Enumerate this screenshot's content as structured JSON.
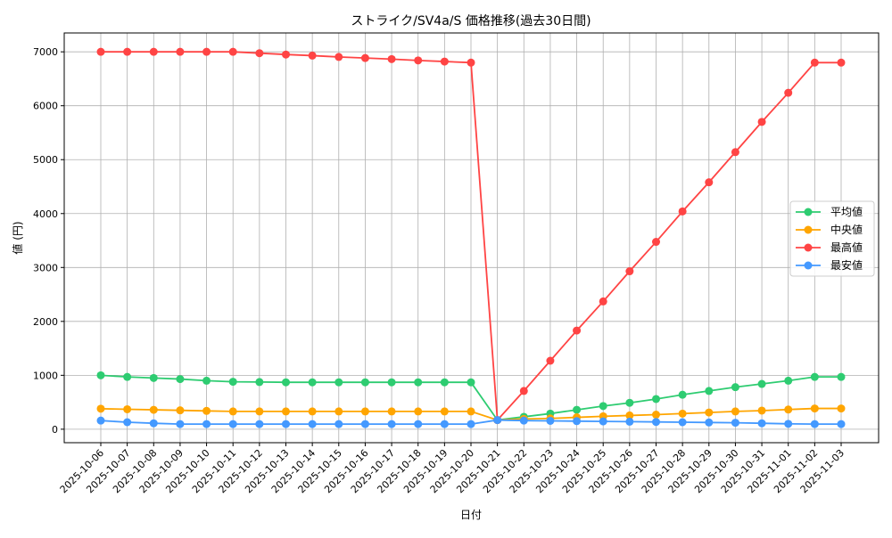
{
  "chart_data": {
    "type": "line",
    "title": "ストライク/SV4a/S 価格推移(過去30日間)",
    "xlabel": "日付",
    "ylabel": "値 (円)",
    "ylim": [
      -250,
      7350
    ],
    "yticks": [
      0,
      1000,
      2000,
      3000,
      4000,
      5000,
      6000,
      7000
    ],
    "grid": true,
    "legend_placement": "center-right",
    "x": [
      "2025-10-06",
      "2025-10-07",
      "2025-10-08",
      "2025-10-09",
      "2025-10-10",
      "2025-10-11",
      "2025-10-12",
      "2025-10-13",
      "2025-10-14",
      "2025-10-15",
      "2025-10-16",
      "2025-10-17",
      "2025-10-18",
      "2025-10-19",
      "2025-10-20",
      "2025-10-21",
      "2025-10-22",
      "2025-10-23",
      "2025-10-24",
      "2025-10-25",
      "2025-10-26",
      "2025-10-27",
      "2025-10-28",
      "2025-10-29",
      "2025-10-30",
      "2025-10-31",
      "2025-11-01",
      "2025-11-02",
      "2025-11-03"
    ],
    "series": [
      {
        "name": "平均値",
        "color": "#2ecc71",
        "values": [
          1000,
          970,
          950,
          930,
          900,
          880,
          875,
          870,
          870,
          870,
          870,
          870,
          870,
          870,
          870,
          170,
          230,
          290,
          360,
          430,
          490,
          560,
          640,
          710,
          780,
          840,
          900,
          970,
          970
        ]
      },
      {
        "name": "中央値",
        "color": "#ffa500",
        "values": [
          380,
          370,
          360,
          350,
          340,
          330,
          330,
          330,
          330,
          330,
          330,
          330,
          330,
          330,
          330,
          170,
          190,
          200,
          220,
          240,
          255,
          270,
          290,
          310,
          330,
          345,
          365,
          385,
          385
        ]
      },
      {
        "name": "最高値",
        "color": "#ff4444",
        "values": [
          7000,
          7000,
          7000,
          7000,
          7000,
          7000,
          6975,
          6950,
          6930,
          6905,
          6885,
          6865,
          6840,
          6820,
          6800,
          170,
          710,
          1270,
          1830,
          2370,
          2930,
          3475,
          4040,
          4580,
          5140,
          5700,
          6240,
          6800,
          6800
        ]
      },
      {
        "name": "最安値",
        "color": "#4499ff",
        "values": [
          160,
          130,
          110,
          95,
          95,
          95,
          95,
          95,
          95,
          95,
          95,
          95,
          95,
          95,
          95,
          170,
          160,
          155,
          150,
          145,
          140,
          135,
          130,
          125,
          120,
          110,
          100,
          95,
          95
        ]
      }
    ]
  }
}
